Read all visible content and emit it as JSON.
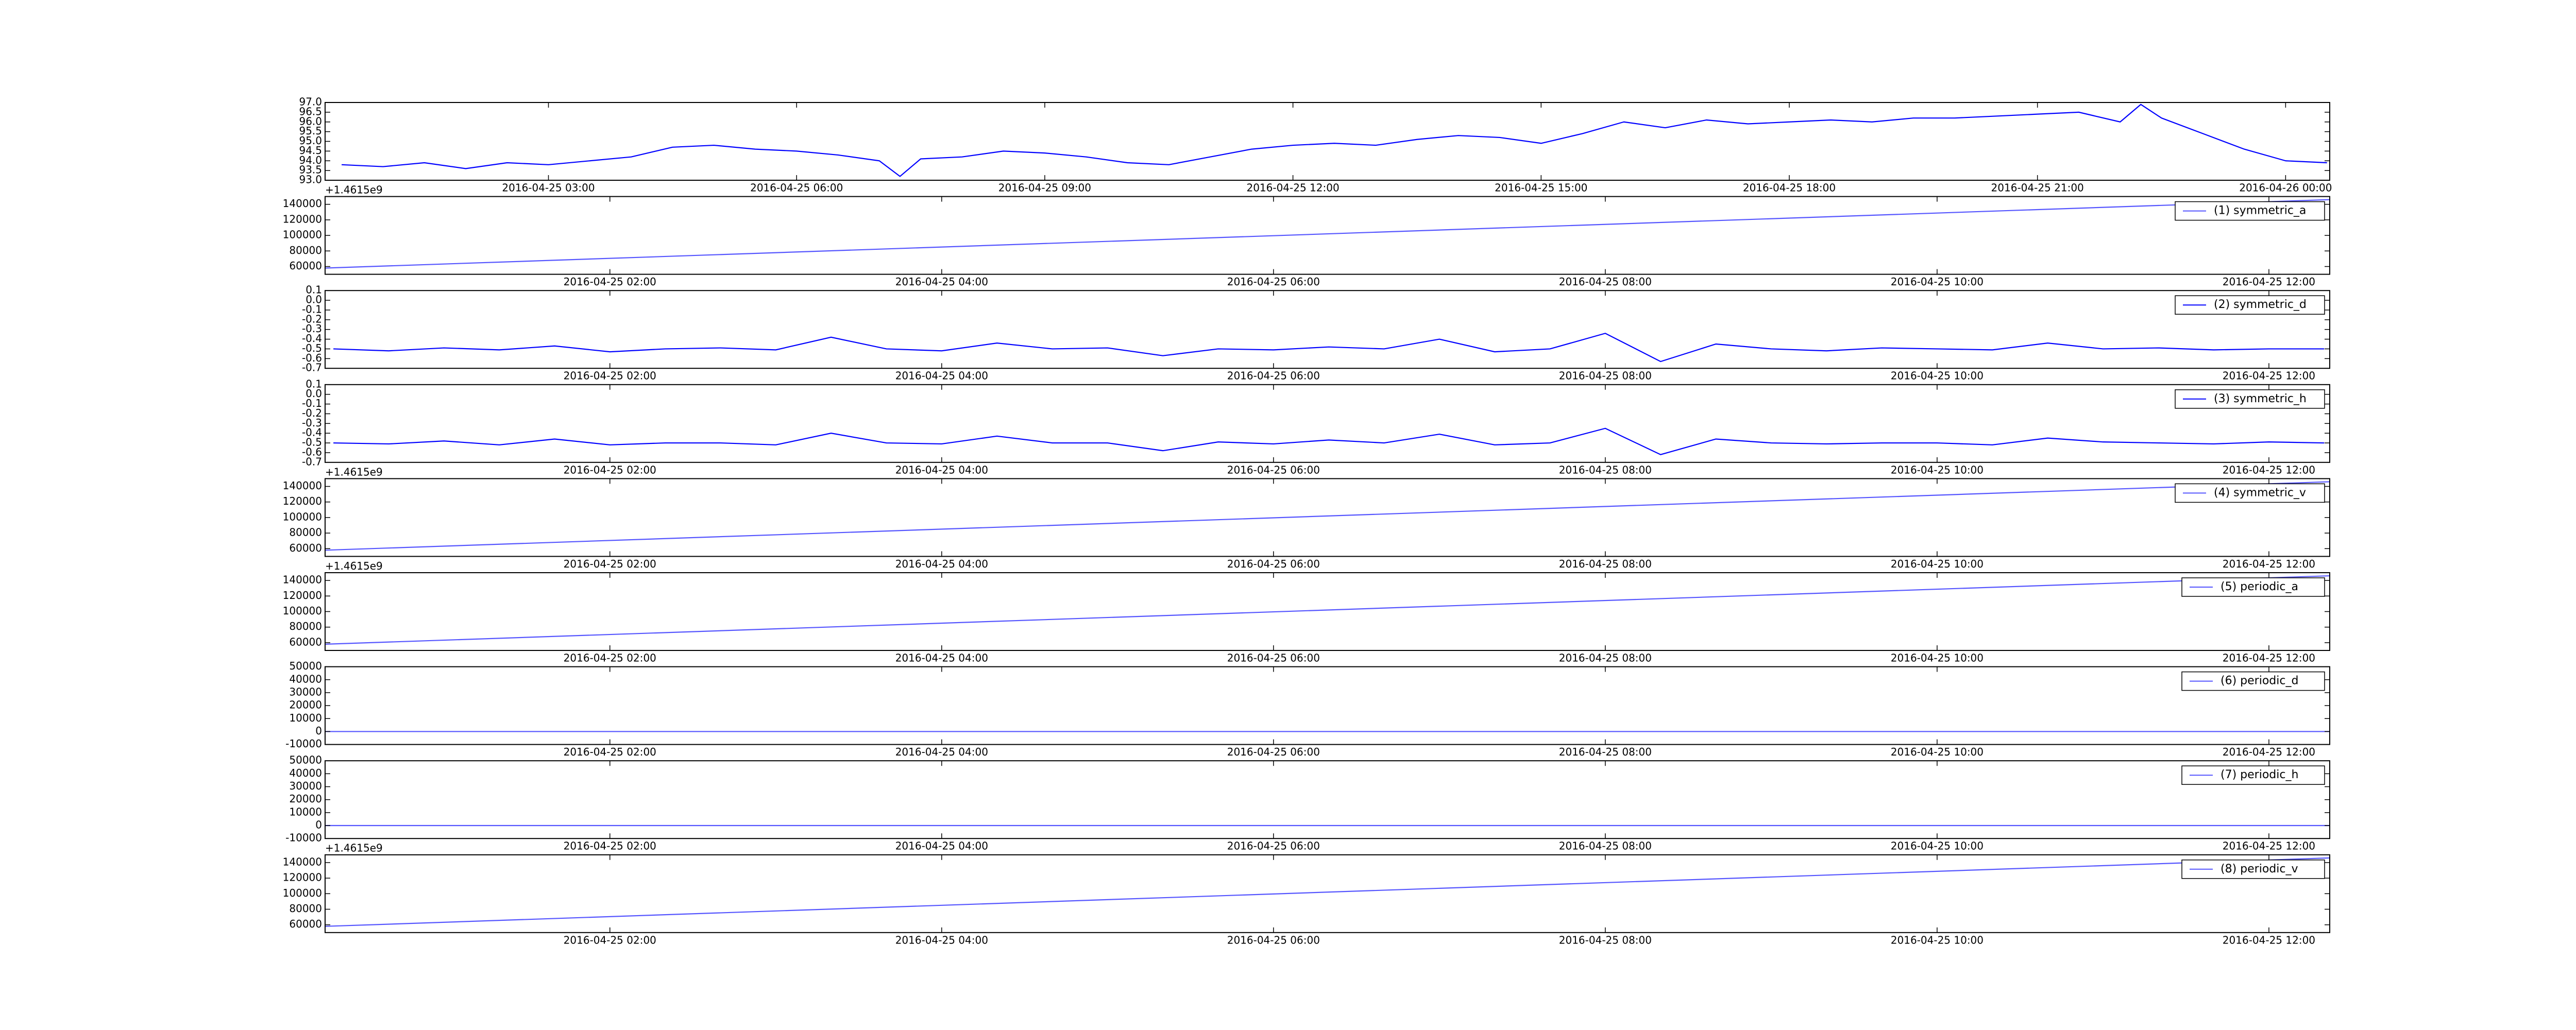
{
  "chart_data": [
    {
      "type": "line",
      "color": "#0000ff",
      "x": [
        "2016-04-25 00:30",
        "2016-04-25 01:00",
        "2016-04-25 01:30",
        "2016-04-25 02:00",
        "2016-04-25 02:30",
        "2016-04-25 03:00",
        "2016-04-25 03:30",
        "2016-04-25 04:00",
        "2016-04-25 04:30",
        "2016-04-25 05:00",
        "2016-04-25 05:30",
        "2016-04-25 06:00",
        "2016-04-25 06:30",
        "2016-04-25 07:00",
        "2016-04-25 07:15",
        "2016-04-25 07:30",
        "2016-04-25 08:00",
        "2016-04-25 08:30",
        "2016-04-25 09:00",
        "2016-04-25 09:30",
        "2016-04-25 10:00",
        "2016-04-25 10:30",
        "2016-04-25 11:00",
        "2016-04-25 11:30",
        "2016-04-25 12:00",
        "2016-04-25 12:30",
        "2016-04-25 13:00",
        "2016-04-25 13:30",
        "2016-04-25 14:00",
        "2016-04-25 14:30",
        "2016-04-25 15:00",
        "2016-04-25 15:30",
        "2016-04-25 16:00",
        "2016-04-25 16:30",
        "2016-04-25 17:00",
        "2016-04-25 17:30",
        "2016-04-25 18:00",
        "2016-04-25 18:30",
        "2016-04-25 19:00",
        "2016-04-25 19:30",
        "2016-04-25 20:00",
        "2016-04-25 20:30",
        "2016-04-25 21:00",
        "2016-04-25 21:30",
        "2016-04-25 22:00",
        "2016-04-25 22:15",
        "2016-04-25 22:30",
        "2016-04-25 23:00",
        "2016-04-25 23:30",
        "2016-04-26 00:00",
        "2016-04-26 00:30"
      ],
      "values": [
        93.8,
        93.7,
        93.9,
        93.6,
        93.9,
        93.8,
        94.0,
        94.2,
        94.7,
        94.8,
        94.6,
        94.5,
        94.3,
        94.0,
        93.2,
        94.1,
        94.2,
        94.5,
        94.4,
        94.2,
        93.9,
        93.8,
        94.2,
        94.6,
        94.8,
        94.9,
        94.8,
        95.1,
        95.3,
        95.2,
        94.9,
        95.4,
        96.0,
        95.7,
        96.1,
        95.9,
        96.0,
        96.1,
        96.0,
        96.2,
        96.2,
        96.3,
        96.4,
        96.5,
        96.0,
        96.9,
        96.2,
        95.4,
        94.6,
        94.0,
        93.9
      ],
      "xlim": [
        "2016-04-25 00:18",
        "2016-04-26 00:32"
      ],
      "xticks": [
        "2016-04-25 03:00",
        "2016-04-25 06:00",
        "2016-04-25 09:00",
        "2016-04-25 12:00",
        "2016-04-25 15:00",
        "2016-04-25 18:00",
        "2016-04-25 21:00",
        "2016-04-26 00:00"
      ],
      "ylim": [
        93,
        97
      ],
      "yticks": [
        {
          "value": 93,
          "label": "93.0"
        },
        93.5,
        {
          "value": 94,
          "label": "94.0"
        },
        94.5,
        {
          "value": 95,
          "label": "95.0"
        },
        95.5,
        {
          "value": 96,
          "label": "96.0"
        },
        96.5,
        {
          "value": 97,
          "label": "97.0"
        }
      ],
      "offset_text": "+1.4615e9"
    },
    {
      "type": "line",
      "series": [
        {
          "name": "(1) symmetric_a",
          "color": "#5555ff",
          "values": [
            58000,
            146000
          ]
        }
      ],
      "x": [
        "2016-04-25 00:17",
        "2016-04-25 12:22"
      ],
      "xlim": [
        "2016-04-25 00:17",
        "2016-04-25 12:22"
      ],
      "xticks": [
        "2016-04-25 02:00",
        "2016-04-25 04:00",
        "2016-04-25 06:00",
        "2016-04-25 08:00",
        "2016-04-25 10:00",
        "2016-04-25 12:00"
      ],
      "ylim": [
        50000,
        150000
      ],
      "yticks": [
        60000,
        80000,
        100000,
        120000,
        140000
      ],
      "legend": "upper right"
    },
    {
      "type": "line",
      "series": [
        {
          "name": "(2) symmetric_d",
          "color": "#0000ff",
          "values": [
            -0.5,
            -0.52,
            -0.49,
            -0.51,
            -0.47,
            -0.53,
            -0.5,
            -0.49,
            -0.51,
            -0.38,
            -0.5,
            -0.52,
            -0.44,
            -0.5,
            -0.49,
            -0.57,
            -0.5,
            -0.51,
            -0.48,
            -0.5,
            -0.4,
            -0.53,
            -0.5,
            -0.34,
            -0.63,
            -0.45,
            -0.5,
            -0.52,
            -0.49,
            -0.5,
            -0.51,
            -0.44,
            -0.5,
            -0.49,
            -0.51,
            -0.5,
            -0.5
          ]
        }
      ],
      "x": [
        "2016-04-25 00:20",
        "2016-04-25 00:40",
        "2016-04-25 01:00",
        "2016-04-25 01:20",
        "2016-04-25 01:40",
        "2016-04-25 02:00",
        "2016-04-25 02:20",
        "2016-04-25 02:40",
        "2016-04-25 03:00",
        "2016-04-25 03:20",
        "2016-04-25 03:40",
        "2016-04-25 04:00",
        "2016-04-25 04:20",
        "2016-04-25 04:40",
        "2016-04-25 05:00",
        "2016-04-25 05:20",
        "2016-04-25 05:40",
        "2016-04-25 06:00",
        "2016-04-25 06:20",
        "2016-04-25 06:40",
        "2016-04-25 07:00",
        "2016-04-25 07:20",
        "2016-04-25 07:40",
        "2016-04-25 08:00",
        "2016-04-25 08:20",
        "2016-04-25 08:40",
        "2016-04-25 09:00",
        "2016-04-25 09:20",
        "2016-04-25 09:40",
        "2016-04-25 10:00",
        "2016-04-25 10:20",
        "2016-04-25 10:40",
        "2016-04-25 11:00",
        "2016-04-25 11:20",
        "2016-04-25 11:40",
        "2016-04-25 12:00",
        "2016-04-25 12:20"
      ],
      "xlim": [
        "2016-04-25 00:17",
        "2016-04-25 12:22"
      ],
      "xticks": [
        "2016-04-25 02:00",
        "2016-04-25 04:00",
        "2016-04-25 06:00",
        "2016-04-25 08:00",
        "2016-04-25 10:00",
        "2016-04-25 12:00"
      ],
      "ylim": [
        -0.7,
        0.1
      ],
      "yticks": [
        0.1,
        {
          "value": 0,
          "label": "0.0"
        },
        -0.1,
        -0.2,
        -0.3,
        -0.4,
        -0.5,
        -0.6,
        -0.7
      ],
      "legend": "upper right"
    },
    {
      "type": "line",
      "series": [
        {
          "name": "(3) symmetric_h",
          "color": "#0000ff",
          "values": [
            -0.5,
            -0.51,
            -0.48,
            -0.52,
            -0.46,
            -0.52,
            -0.5,
            -0.5,
            -0.52,
            -0.4,
            -0.5,
            -0.51,
            -0.43,
            -0.5,
            -0.5,
            -0.58,
            -0.49,
            -0.51,
            -0.47,
            -0.5,
            -0.41,
            -0.52,
            -0.5,
            -0.35,
            -0.62,
            -0.46,
            -0.5,
            -0.51,
            -0.5,
            -0.5,
            -0.52,
            -0.45,
            -0.49,
            -0.5,
            -0.51,
            -0.49,
            -0.5
          ]
        }
      ],
      "x": [
        "2016-04-25 00:20",
        "2016-04-25 00:40",
        "2016-04-25 01:00",
        "2016-04-25 01:20",
        "2016-04-25 01:40",
        "2016-04-25 02:00",
        "2016-04-25 02:20",
        "2016-04-25 02:40",
        "2016-04-25 03:00",
        "2016-04-25 03:20",
        "2016-04-25 03:40",
        "2016-04-25 04:00",
        "2016-04-25 04:20",
        "2016-04-25 04:40",
        "2016-04-25 05:00",
        "2016-04-25 05:20",
        "2016-04-25 05:40",
        "2016-04-25 06:00",
        "2016-04-25 06:20",
        "2016-04-25 06:40",
        "2016-04-25 07:00",
        "2016-04-25 07:20",
        "2016-04-25 07:40",
        "2016-04-25 08:00",
        "2016-04-25 08:20",
        "2016-04-25 08:40",
        "2016-04-25 09:00",
        "2016-04-25 09:20",
        "2016-04-25 09:40",
        "2016-04-25 10:00",
        "2016-04-25 10:20",
        "2016-04-25 10:40",
        "2016-04-25 11:00",
        "2016-04-25 11:20",
        "2016-04-25 11:40",
        "2016-04-25 12:00",
        "2016-04-25 12:20"
      ],
      "xlim": [
        "2016-04-25 00:17",
        "2016-04-25 12:22"
      ],
      "xticks": [
        "2016-04-25 02:00",
        "2016-04-25 04:00",
        "2016-04-25 06:00",
        "2016-04-25 08:00",
        "2016-04-25 10:00",
        "2016-04-25 12:00"
      ],
      "ylim": [
        -0.7,
        0.1
      ],
      "yticks": [
        0.1,
        {
          "value": 0,
          "label": "0.0"
        },
        -0.1,
        -0.2,
        -0.3,
        -0.4,
        -0.5,
        -0.6,
        -0.7
      ],
      "legend": "upper right",
      "offset_text": "+1.4615e9"
    },
    {
      "type": "line",
      "series": [
        {
          "name": "(4) symmetric_v",
          "color": "#5555ff",
          "values": [
            58000,
            146000
          ]
        }
      ],
      "x": [
        "2016-04-25 00:17",
        "2016-04-25 12:22"
      ],
      "xlim": [
        "2016-04-25 00:17",
        "2016-04-25 12:22"
      ],
      "xticks": [
        "2016-04-25 02:00",
        "2016-04-25 04:00",
        "2016-04-25 06:00",
        "2016-04-25 08:00",
        "2016-04-25 10:00",
        "2016-04-25 12:00"
      ],
      "ylim": [
        50000,
        150000
      ],
      "yticks": [
        60000,
        80000,
        100000,
        120000,
        140000
      ],
      "legend": "upper right",
      "offset_text": "+1.4615e9"
    },
    {
      "type": "line",
      "series": [
        {
          "name": "(5) periodic_a",
          "color": "#5555ff",
          "values": [
            58000,
            146000
          ]
        }
      ],
      "x": [
        "2016-04-25 00:17",
        "2016-04-25 12:22"
      ],
      "xlim": [
        "2016-04-25 00:17",
        "2016-04-25 12:22"
      ],
      "xticks": [
        "2016-04-25 02:00",
        "2016-04-25 04:00",
        "2016-04-25 06:00",
        "2016-04-25 08:00",
        "2016-04-25 10:00",
        "2016-04-25 12:00"
      ],
      "ylim": [
        50000,
        150000
      ],
      "yticks": [
        60000,
        80000,
        100000,
        120000,
        140000
      ],
      "legend": "upper right"
    },
    {
      "type": "line",
      "series": [
        {
          "name": "(6) periodic_d",
          "color": "#5555ff",
          "values": [
            0,
            0
          ]
        }
      ],
      "x": [
        "2016-04-25 00:17",
        "2016-04-25 12:22"
      ],
      "xlim": [
        "2016-04-25 00:17",
        "2016-04-25 12:22"
      ],
      "xticks": [
        "2016-04-25 02:00",
        "2016-04-25 04:00",
        "2016-04-25 06:00",
        "2016-04-25 08:00",
        "2016-04-25 10:00",
        "2016-04-25 12:00"
      ],
      "ylim": [
        -10000,
        50000
      ],
      "yticks": [
        -10000,
        0,
        10000,
        20000,
        30000,
        40000,
        50000
      ],
      "legend": "upper right"
    },
    {
      "type": "line",
      "series": [
        {
          "name": "(7) periodic_h",
          "color": "#5555ff",
          "values": [
            0,
            0
          ]
        }
      ],
      "x": [
        "2016-04-25 00:17",
        "2016-04-25 12:22"
      ],
      "xlim": [
        "2016-04-25 00:17",
        "2016-04-25 12:22"
      ],
      "xticks": [
        "2016-04-25 02:00",
        "2016-04-25 04:00",
        "2016-04-25 06:00",
        "2016-04-25 08:00",
        "2016-04-25 10:00",
        "2016-04-25 12:00"
      ],
      "ylim": [
        -10000,
        50000
      ],
      "yticks": [
        -10000,
        0,
        10000,
        20000,
        30000,
        40000,
        50000
      ],
      "legend": "upper right",
      "offset_text": "+1.4615e9"
    },
    {
      "type": "line",
      "series": [
        {
          "name": "(8) periodic_v",
          "color": "#5555ff",
          "values": [
            58000,
            146000
          ]
        }
      ],
      "x": [
        "2016-04-25 00:17",
        "2016-04-25 12:22"
      ],
      "xlim": [
        "2016-04-25 00:17",
        "2016-04-25 12:22"
      ],
      "xticks": [
        "2016-04-25 02:00",
        "2016-04-25 04:00",
        "2016-04-25 06:00",
        "2016-04-25 08:00",
        "2016-04-25 10:00",
        "2016-04-25 12:00"
      ],
      "ylim": [
        50000,
        150000
      ],
      "yticks": [
        60000,
        80000,
        100000,
        120000,
        140000
      ],
      "legend": "upper right"
    }
  ]
}
